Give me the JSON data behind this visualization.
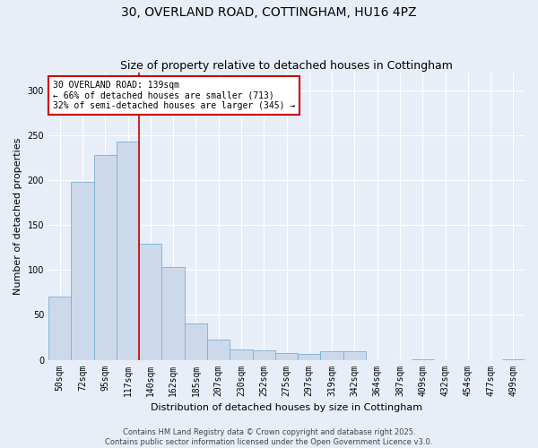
{
  "title": "30, OVERLAND ROAD, COTTINGHAM, HU16 4PZ",
  "subtitle": "Size of property relative to detached houses in Cottingham",
  "xlabel": "Distribution of detached houses by size in Cottingham",
  "ylabel": "Number of detached properties",
  "categories": [
    "50sqm",
    "72sqm",
    "95sqm",
    "117sqm",
    "140sqm",
    "162sqm",
    "185sqm",
    "207sqm",
    "230sqm",
    "252sqm",
    "275sqm",
    "297sqm",
    "319sqm",
    "342sqm",
    "364sqm",
    "387sqm",
    "409sqm",
    "432sqm",
    "454sqm",
    "477sqm",
    "499sqm"
  ],
  "values": [
    70,
    198,
    228,
    243,
    129,
    103,
    40,
    22,
    12,
    11,
    8,
    7,
    10,
    10,
    0,
    0,
    1,
    0,
    0,
    0,
    1
  ],
  "bar_color": "#ccd9ea",
  "bar_edge_color": "#7aafd4",
  "highlight_line_index": 4,
  "annotation_title": "30 OVERLAND ROAD: 139sqm",
  "annotation_line1": "← 66% of detached houses are smaller (713)",
  "annotation_line2": "32% of semi-detached houses are larger (345) →",
  "annotation_box_facecolor": "#ffffff",
  "annotation_box_edgecolor": "#cc0000",
  "footer_line1": "Contains HM Land Registry data © Crown copyright and database right 2025.",
  "footer_line2": "Contains public sector information licensed under the Open Government Licence v3.0.",
  "background_color": "#e8eef7",
  "plot_background": "#e8eef7",
  "ylim": [
    0,
    320
  ],
  "yticks": [
    0,
    50,
    100,
    150,
    200,
    250,
    300
  ],
  "title_fontsize": 10,
  "subtitle_fontsize": 9,
  "xlabel_fontsize": 8,
  "ylabel_fontsize": 8,
  "tick_fontsize": 7,
  "annotation_fontsize": 7,
  "footer_fontsize": 6
}
